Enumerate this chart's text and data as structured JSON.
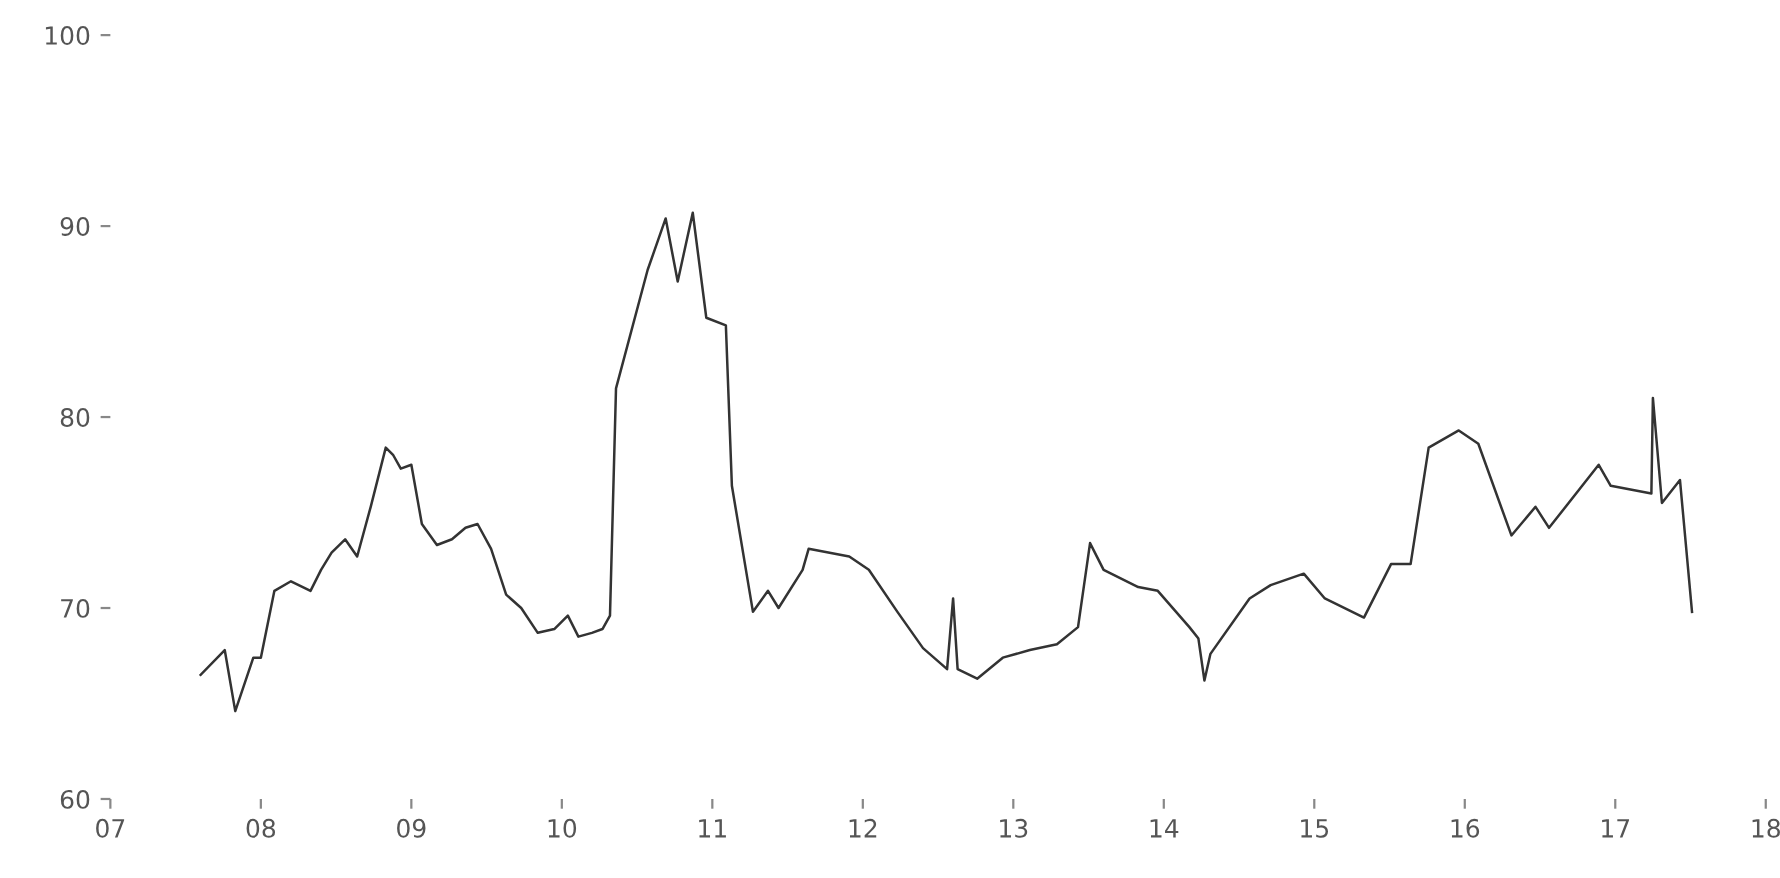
{
  "chart_data": {
    "type": "line",
    "color": "#333333",
    "grid": false,
    "marker": "none",
    "line_style": "solid",
    "x": [
      7.6,
      7.76,
      7.83,
      7.95,
      8.0,
      8.09,
      8.2,
      8.33,
      8.4,
      8.47,
      8.56,
      8.64,
      8.73,
      8.83,
      8.88,
      8.93,
      9.0,
      9.07,
      9.17,
      9.27,
      9.36,
      9.44,
      9.53,
      9.63,
      9.73,
      9.84,
      9.95,
      10.04,
      10.11,
      10.2,
      10.27,
      10.32,
      10.36,
      10.57,
      10.69,
      10.77,
      10.87,
      10.96,
      11.09,
      11.13,
      11.27,
      11.37,
      11.44,
      11.6,
      11.64,
      11.91,
      12.04,
      12.23,
      12.4,
      12.56,
      12.6,
      12.63,
      12.76,
      12.93,
      13.11,
      13.29,
      13.43,
      13.51,
      13.6,
      13.83,
      13.96,
      14.17,
      14.23,
      14.27,
      14.31,
      14.57,
      14.71,
      14.93,
      15.07,
      15.33,
      15.51,
      15.64,
      15.76,
      15.96,
      16.09,
      16.31,
      16.47,
      16.56,
      16.89,
      16.97,
      17.24,
      17.25,
      17.31,
      17.43,
      17.51
    ],
    "values": [
      66.5,
      67.8,
      64.6,
      67.4,
      67.4,
      70.9,
      71.4,
      70.9,
      72.0,
      72.9,
      73.6,
      72.7,
      75.3,
      78.4,
      78.0,
      77.3,
      77.5,
      74.4,
      73.3,
      73.6,
      74.2,
      74.4,
      73.1,
      70.7,
      70.0,
      68.7,
      68.9,
      69.6,
      68.5,
      68.7,
      68.9,
      69.6,
      81.5,
      87.7,
      90.4,
      87.1,
      90.7,
      85.2,
      84.8,
      76.4,
      69.8,
      70.9,
      70.0,
      72.0,
      73.1,
      72.7,
      72.0,
      69.8,
      67.9,
      66.8,
      70.5,
      66.8,
      66.3,
      67.4,
      67.8,
      68.1,
      69.0,
      73.4,
      72.0,
      71.1,
      70.9,
      69.0,
      68.4,
      66.2,
      67.6,
      70.5,
      71.2,
      71.8,
      70.5,
      69.5,
      72.3,
      72.3,
      78.4,
      79.3,
      78.6,
      73.8,
      75.3,
      74.2,
      77.5,
      76.4,
      76.0,
      81.0,
      75.5,
      76.7,
      69.8
    ],
    "xlim": [
      7,
      18
    ],
    "xticks": [
      {
        "value": 7,
        "label": "07"
      },
      {
        "value": 8,
        "label": "08"
      },
      {
        "value": 9,
        "label": "09"
      },
      {
        "value": 10,
        "label": "10"
      },
      {
        "value": 11,
        "label": "11"
      },
      {
        "value": 12,
        "label": "12"
      },
      {
        "value": 13,
        "label": "13"
      },
      {
        "value": 14,
        "label": "14"
      },
      {
        "value": 15,
        "label": "15"
      },
      {
        "value": 16,
        "label": "16"
      },
      {
        "value": 17,
        "label": "17"
      },
      {
        "value": 18,
        "label": "18"
      }
    ],
    "ylim": [
      60,
      100
    ],
    "yticks": [
      60,
      70,
      80,
      90,
      100
    ]
  }
}
